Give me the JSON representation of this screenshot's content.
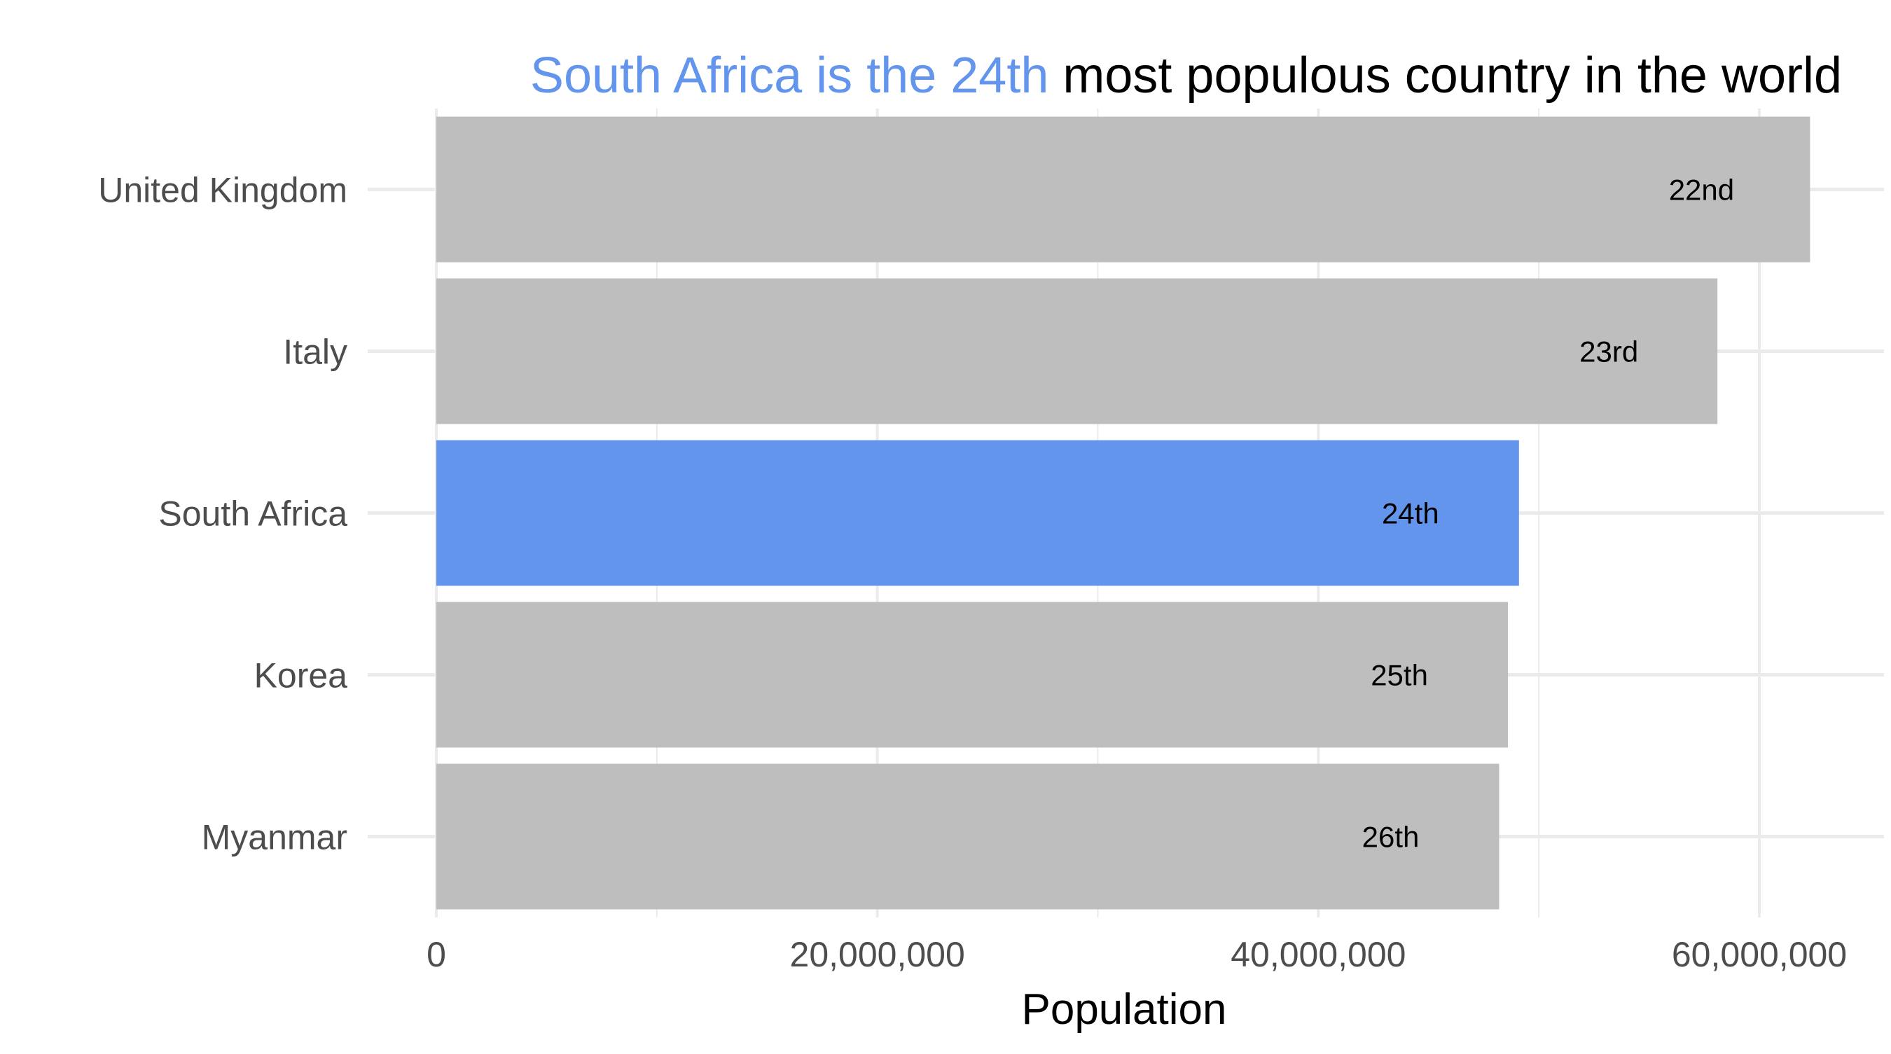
{
  "chart_data": {
    "type": "bar",
    "orientation": "horizontal",
    "title_parts": {
      "highlight": "South Africa is the 24th",
      "rest": "most populous country in the world"
    },
    "xlabel": "Population",
    "ylabel": "",
    "xlim": [
      0,
      65000000
    ],
    "x_ticks": [
      0,
      20000000,
      40000000,
      60000000
    ],
    "x_tick_labels": [
      "0",
      "20,000,000",
      "40,000,000",
      "60,000,000"
    ],
    "grid": true,
    "categories": [
      "United Kingdom",
      "Italy",
      "South Africa",
      "Korea",
      "Myanmar"
    ],
    "values": [
      62300000,
      58100000,
      49100000,
      48600000,
      48200000
    ],
    "rank_labels": [
      "22nd",
      "23rd",
      "24th",
      "25th",
      "26th"
    ],
    "highlight_category": "South Africa",
    "colors": {
      "default_bar": "#BEBEBE",
      "highlight_bar": "#6495ED",
      "grid": "#EBEBEB",
      "axis_text": "#4D4D4D",
      "label_text": "#000000"
    }
  }
}
